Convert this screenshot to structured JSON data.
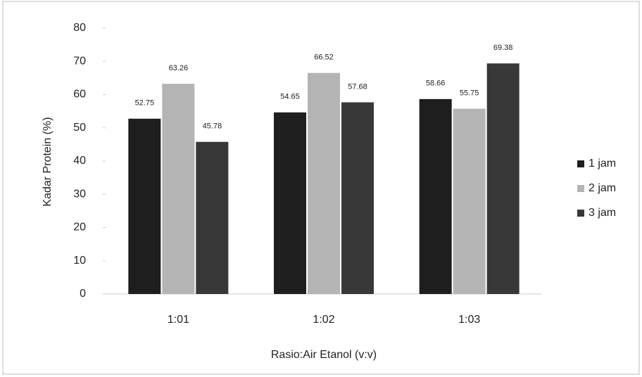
{
  "chart_data": {
    "type": "bar",
    "categories": [
      "1:01",
      "1:02",
      "1:03"
    ],
    "series": [
      {
        "name": "1 jam",
        "color": "#1e1e1e",
        "values": [
          52.75,
          54.65,
          58.66
        ]
      },
      {
        "name": "2 jam",
        "color": "#b4b4b4",
        "values": [
          63.26,
          66.52,
          55.75
        ]
      },
      {
        "name": "3 jam",
        "color": "#383838",
        "values": [
          45.78,
          57.68,
          69.38
        ]
      }
    ],
    "ylim": [
      0,
      80
    ],
    "yticks": [
      0,
      10,
      20,
      30,
      40,
      50,
      60,
      70,
      80
    ],
    "ylabel": "Kadar Protein (%)",
    "xlabel": "Rasio:Air Etanol (v:v)",
    "legend": "right"
  }
}
